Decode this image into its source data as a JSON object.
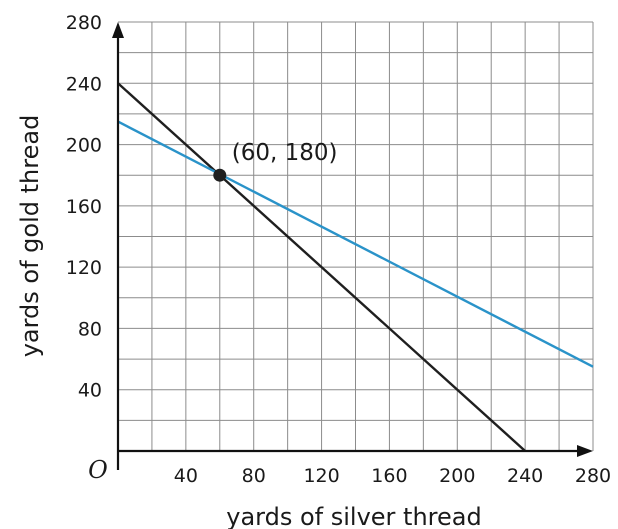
{
  "chart_data": {
    "type": "line",
    "title": "",
    "xlabel": "yards of silver thread",
    "ylabel": "yards of gold thread",
    "origin_label": "O",
    "xlim": [
      0,
      280
    ],
    "ylim": [
      0,
      280
    ],
    "grid": true,
    "grid_step": 20,
    "x_ticks": [
      40,
      80,
      120,
      160,
      200,
      240,
      280
    ],
    "y_ticks": [
      40,
      80,
      120,
      160,
      200,
      240,
      280
    ],
    "series": [
      {
        "color": "#1f1f1f",
        "x": [
          0,
          240
        ],
        "y": [
          240,
          0
        ]
      },
      {
        "color": "#2a93c9",
        "x": [
          0,
          280
        ],
        "y": [
          215,
          55
        ]
      }
    ],
    "annotations": [
      {
        "point": [
          60,
          180
        ],
        "text": "(60, 180)",
        "color": "#1f1f1f"
      }
    ]
  }
}
